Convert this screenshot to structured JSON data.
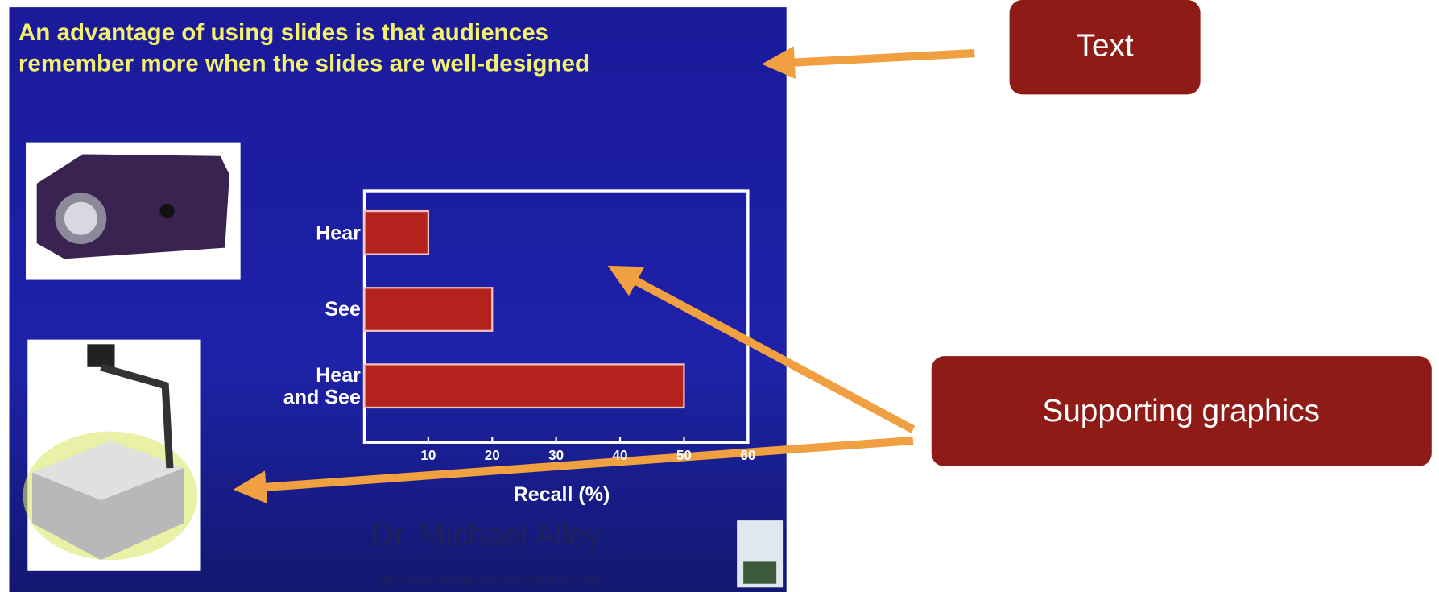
{
  "slide": {
    "title": [
      "An advantage of using slides is that audiences",
      "remember more when the slides are well-designed"
    ],
    "author": "Dr. Michael Alley",
    "url": "http://www.writing.eng.vt.edu/slides.html"
  },
  "chart_data": {
    "type": "bar",
    "orientation": "horizontal",
    "categories": [
      "Hear",
      "See",
      "Hear\nand See"
    ],
    "values": [
      10,
      20,
      50
    ],
    "color": "#b3221d",
    "xlabel": "Recall (%)",
    "xlim": [
      0,
      60
    ],
    "xticks": [
      10,
      20,
      30,
      40,
      50,
      60
    ]
  },
  "callouts": [
    "Text",
    "Supporting graphics"
  ]
}
